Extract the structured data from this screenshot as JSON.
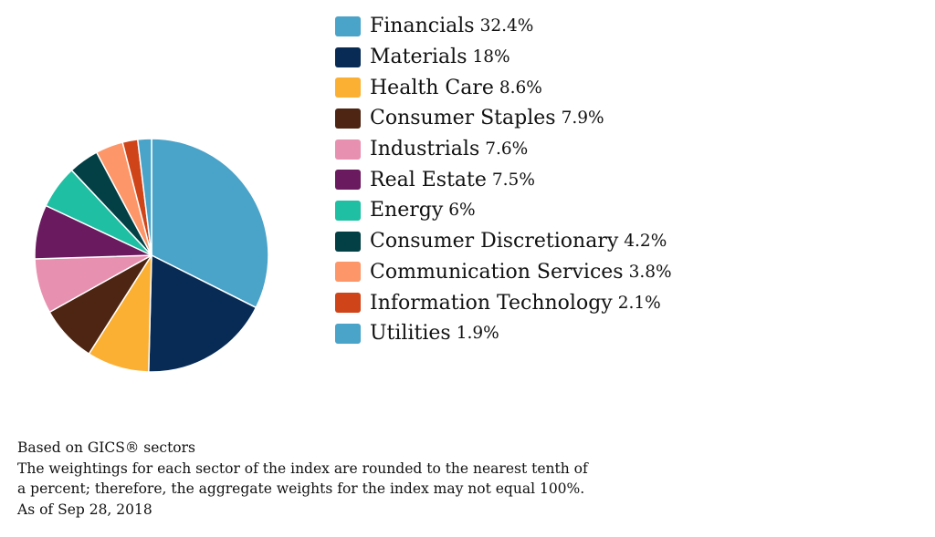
{
  "chart_data": {
    "type": "pie",
    "start": "top",
    "direction": "clockwise",
    "categories": [
      "Financials",
      "Materials",
      "Health Care",
      "Consumer Staples",
      "Industrials",
      "Real Estate",
      "Energy",
      "Consumer Discretionary",
      "Communication Services",
      "Information Technology",
      "Utilities"
    ],
    "values": [
      32.4,
      18,
      8.6,
      7.9,
      7.6,
      7.5,
      6,
      4.2,
      3.8,
      2.1,
      1.9
    ],
    "value_labels": [
      "32.4%",
      "18%",
      "8.6%",
      "7.9%",
      "7.6%",
      "7.5%",
      "6%",
      "4.2%",
      "3.8%",
      "2.1%",
      "1.9%"
    ],
    "colors": [
      "#4aa3c8",
      "#072b55",
      "#fbb034",
      "#4e2512",
      "#e890b0",
      "#6a1a5e",
      "#1fbfa3",
      "#024045",
      "#fd9668",
      "#cf4519",
      "#4aa3c8"
    ],
    "legend_position": "right"
  },
  "footnotes": [
    "Based on GICS® sectors",
    "The weightings for each sector of the index are rounded to the nearest tenth of",
    "a percent; therefore, the aggregate weights for the index may not equal 100%.",
    "As of Sep 28, 2018"
  ]
}
